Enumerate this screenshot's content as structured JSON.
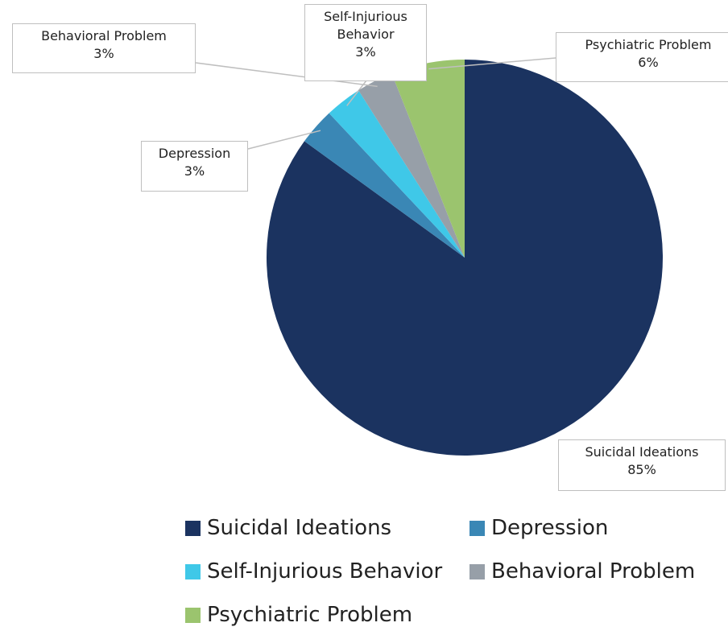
{
  "chart_data": {
    "type": "pie",
    "categories": [
      "Suicidal Ideations",
      "Depression",
      "Self-Injurious Behavior",
      "Behavioral Problem",
      "Psychiatric Problem"
    ],
    "values": [
      85,
      3,
      3,
      3,
      6
    ],
    "value_labels": [
      "85%",
      "3%",
      "3%",
      "3%",
      "6%"
    ],
    "colors": [
      "#1b3360",
      "#3a87b5",
      "#3fc8e8",
      "#979fa8",
      "#9bc46e"
    ],
    "legend": "bottom"
  }
}
